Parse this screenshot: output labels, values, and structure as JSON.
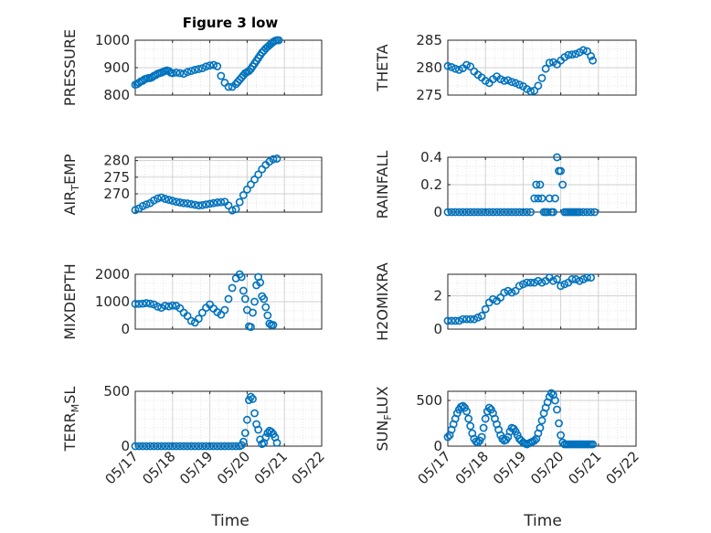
{
  "figure": {
    "title": "Figure 3 low"
  },
  "chart_data": [
    {
      "type": "scatter",
      "ylabel": "PRESSURE",
      "yticks": [
        "800",
        "900",
        "1000"
      ],
      "ylim": [
        800,
        1000
      ],
      "xlim": [
        "05/17",
        "05/22"
      ],
      "x_unit": "days since 05/17 00:00",
      "series": [
        {
          "x": [
            0,
            0.05,
            0.1,
            0.15,
            0.2,
            0.25,
            0.3,
            0.35,
            0.4,
            0.45,
            0.5,
            0.55,
            0.6,
            0.65,
            0.7,
            0.75,
            0.8,
            0.85,
            0.9,
            0.95,
            1.0,
            1.1,
            1.2,
            1.3,
            1.4,
            1.5,
            1.6,
            1.7,
            1.8,
            1.9,
            2.0,
            2.1,
            2.2,
            2.3,
            2.4,
            2.5,
            2.6,
            2.7,
            2.75,
            2.8,
            2.85,
            2.9,
            2.95,
            3.0,
            3.05,
            3.1,
            3.15,
            3.2,
            3.25,
            3.3,
            3.35,
            3.4,
            3.45,
            3.5,
            3.55,
            3.6,
            3.65,
            3.7,
            3.75,
            3.8,
            3.85
          ],
          "y": [
            838,
            840,
            845,
            850,
            852,
            858,
            860,
            862,
            862,
            865,
            870,
            873,
            878,
            880,
            882,
            885,
            888,
            890,
            888,
            882,
            880,
            882,
            880,
            878,
            884,
            888,
            892,
            895,
            898,
            904,
            908,
            910,
            905,
            870,
            845,
            830,
            830,
            840,
            848,
            856,
            864,
            872,
            880,
            884,
            888,
            895,
            905,
            915,
            925,
            935,
            945,
            955,
            962,
            970,
            976,
            982,
            988,
            994,
            998,
            1000,
            1000
          ]
        }
      ]
    },
    {
      "type": "scatter",
      "ylabel": "THETA",
      "yticks": [
        "275",
        "280",
        "285"
      ],
      "ylim": [
        275,
        285
      ],
      "xlim": [
        "05/17",
        "05/22"
      ],
      "x_unit": "days since 05/17 00:00",
      "series": [
        {
          "x": [
            0,
            0.1,
            0.2,
            0.3,
            0.4,
            0.5,
            0.6,
            0.7,
            0.8,
            0.9,
            1.0,
            1.1,
            1.2,
            1.3,
            1.4,
            1.5,
            1.6,
            1.7,
            1.8,
            1.9,
            2.0,
            2.1,
            2.2,
            2.3,
            2.4,
            2.5,
            2.6,
            2.7,
            2.8,
            2.9,
            3.0,
            3.1,
            3.2,
            3.3,
            3.4,
            3.5,
            3.6,
            3.7,
            3.8,
            3.85
          ],
          "y": [
            280.3,
            280.1,
            279.8,
            279.6,
            279.9,
            280.5,
            280.2,
            279.3,
            278.7,
            278.2,
            277.6,
            277.2,
            277.9,
            278.4,
            277.9,
            277.6,
            277.7,
            277.4,
            277.2,
            276.9,
            276.6,
            276.1,
            275.7,
            275.8,
            276.7,
            278.1,
            279.8,
            280.9,
            281.0,
            280.6,
            281.3,
            281.9,
            282.3,
            282.4,
            282.5,
            282.8,
            283.2,
            283.0,
            282.1,
            281.3
          ]
        }
      ]
    },
    {
      "type": "scatter",
      "ylabel": "AIR_TEMP",
      "ylabel_parts": {
        "main": "AIR",
        "sub": "T",
        "rest": "EMP"
      },
      "yticks": [
        "270",
        "275",
        "280"
      ],
      "ylim": [
        264.5,
        281
      ],
      "xlim": [
        "05/17",
        "05/22"
      ],
      "x_unit": "days since 05/17 00:00",
      "series": [
        {
          "x": [
            0,
            0.1,
            0.2,
            0.3,
            0.4,
            0.5,
            0.6,
            0.7,
            0.8,
            0.9,
            1.0,
            1.1,
            1.2,
            1.3,
            1.4,
            1.5,
            1.6,
            1.7,
            1.8,
            1.9,
            2.0,
            2.1,
            2.2,
            2.3,
            2.4,
            2.5,
            2.6,
            2.7,
            2.8,
            2.9,
            3.0,
            3.1,
            3.2,
            3.3,
            3.4,
            3.5,
            3.6,
            3.7,
            3.8
          ],
          "y": [
            265.1,
            265.6,
            266.3,
            266.8,
            267.2,
            268.0,
            268.6,
            268.9,
            268.5,
            268.2,
            267.9,
            267.6,
            267.4,
            267.2,
            267.1,
            266.9,
            266.7,
            266.5,
            266.6,
            266.8,
            267.0,
            267.2,
            267.4,
            267.5,
            267.6,
            266.5,
            265.0,
            265.4,
            267.5,
            269.6,
            271.3,
            272.8,
            274.3,
            275.8,
            277.4,
            278.7,
            279.7,
            280.4,
            280.6
          ]
        }
      ]
    },
    {
      "type": "scatter",
      "ylabel": "RAINFALL",
      "yticks": [
        "0",
        "0.2",
        "0.4"
      ],
      "ylim": [
        0,
        0.4
      ],
      "xlim": [
        "05/17",
        "05/22"
      ],
      "x_unit": "days since 05/17 00:00",
      "series": [
        {
          "x": [
            0,
            0.1,
            0.2,
            0.3,
            0.4,
            0.5,
            0.6,
            0.7,
            0.8,
            0.9,
            1.0,
            1.1,
            1.2,
            1.3,
            1.4,
            1.5,
            1.6,
            1.7,
            1.8,
            1.9,
            2.0,
            2.1,
            2.2,
            2.3,
            2.35,
            2.4,
            2.45,
            2.5,
            2.55,
            2.6,
            2.65,
            2.7,
            2.75,
            2.8,
            2.85,
            2.9,
            2.95,
            3.0,
            3.05,
            3.1,
            3.15,
            3.2,
            3.25,
            3.3,
            3.35,
            3.4,
            3.45,
            3.5,
            3.6,
            3.7,
            3.8,
            3.9
          ],
          "y": [
            0,
            0,
            0,
            0,
            0,
            0,
            0,
            0,
            0,
            0,
            0,
            0,
            0,
            0,
            0,
            0,
            0,
            0,
            0,
            0,
            0,
            0,
            0,
            0.1,
            0.2,
            0.1,
            0.2,
            0.1,
            0,
            0,
            0,
            0.1,
            0,
            0,
            0.1,
            0.4,
            0.3,
            0.3,
            0.2,
            0,
            0,
            0,
            0,
            0,
            0,
            0,
            0,
            0,
            0,
            0,
            0,
            0
          ]
        }
      ]
    },
    {
      "type": "scatter",
      "ylabel": "MIXDEPTH",
      "yticks": [
        "0",
        "1000",
        "2000"
      ],
      "ylim": [
        0,
        2000
      ],
      "xlim": [
        "05/17",
        "05/22"
      ],
      "x_unit": "days since 05/17 00:00",
      "series": [
        {
          "x": [
            0,
            0.1,
            0.2,
            0.3,
            0.4,
            0.5,
            0.6,
            0.7,
            0.8,
            0.9,
            1.0,
            1.1,
            1.2,
            1.3,
            1.4,
            1.5,
            1.6,
            1.7,
            1.8,
            1.9,
            2.0,
            2.1,
            2.2,
            2.3,
            2.4,
            2.5,
            2.6,
            2.7,
            2.8,
            2.85,
            2.9,
            2.95,
            3.0,
            3.05,
            3.1,
            3.15,
            3.2,
            3.25,
            3.3,
            3.35,
            3.4,
            3.45,
            3.5,
            3.55,
            3.6,
            3.65,
            3.7
          ],
          "y": [
            920,
            920,
            930,
            950,
            930,
            900,
            820,
            780,
            850,
            830,
            860,
            850,
            760,
            600,
            480,
            300,
            240,
            380,
            600,
            780,
            900,
            750,
            620,
            530,
            700,
            1100,
            1500,
            1850,
            2000,
            1900,
            1400,
            1100,
            700,
            100,
            80,
            600,
            1000,
            1600,
            1900,
            1700,
            1200,
            1100,
            800,
            500,
            200,
            150,
            150
          ]
        }
      ]
    },
    {
      "type": "scatter",
      "ylabel": "H2OMIXRA",
      "yticks": [
        "0",
        "2"
      ],
      "ylim": [
        0,
        3.3
      ],
      "xlim": [
        "05/17",
        "05/22"
      ],
      "x_unit": "days since 05/17 00:00",
      "series": [
        {
          "x": [
            0,
            0.1,
            0.2,
            0.3,
            0.4,
            0.5,
            0.6,
            0.7,
            0.8,
            0.9,
            1.0,
            1.1,
            1.2,
            1.3,
            1.4,
            1.5,
            1.6,
            1.7,
            1.8,
            1.9,
            2.0,
            2.1,
            2.2,
            2.3,
            2.4,
            2.5,
            2.6,
            2.7,
            2.8,
            2.9,
            3.0,
            3.1,
            3.2,
            3.3,
            3.4,
            3.5,
            3.6,
            3.7,
            3.8
          ],
          "y": [
            0.5,
            0.5,
            0.5,
            0.5,
            0.6,
            0.6,
            0.6,
            0.6,
            0.7,
            0.8,
            1.2,
            1.6,
            1.8,
            1.7,
            1.9,
            2.2,
            2.3,
            2.2,
            2.3,
            2.6,
            2.7,
            2.8,
            2.8,
            2.8,
            2.9,
            2.8,
            2.9,
            3.1,
            2.9,
            3.0,
            2.6,
            2.7,
            2.8,
            3.0,
            3.0,
            2.9,
            3.0,
            3.1,
            3.1
          ]
        }
      ]
    },
    {
      "type": "scatter",
      "ylabel": "TERR_MSL",
      "ylabel_parts": {
        "main": "TERR",
        "sub": "M",
        "rest": "SL"
      },
      "yticks": [
        "0",
        "500"
      ],
      "ylim": [
        0,
        500
      ],
      "xlim": [
        "05/17",
        "05/22"
      ],
      "x_unit": "days since 05/17 00:00",
      "series": [
        {
          "x": [
            0,
            0.1,
            0.2,
            0.3,
            0.4,
            0.5,
            0.6,
            0.7,
            0.8,
            0.9,
            1.0,
            1.1,
            1.2,
            1.3,
            1.4,
            1.5,
            1.6,
            1.7,
            1.8,
            1.9,
            2.0,
            2.1,
            2.2,
            2.3,
            2.4,
            2.5,
            2.6,
            2.7,
            2.8,
            2.85,
            2.9,
            2.95,
            3.0,
            3.05,
            3.1,
            3.15,
            3.2,
            3.25,
            3.3,
            3.35,
            3.4,
            3.45,
            3.5,
            3.55,
            3.6,
            3.65,
            3.7,
            3.75,
            3.8
          ],
          "y": [
            0,
            0,
            0,
            0,
            0,
            0,
            0,
            0,
            0,
            0,
            0,
            0,
            0,
            0,
            0,
            0,
            0,
            0,
            0,
            0,
            0,
            0,
            0,
            0,
            0,
            0,
            0,
            0,
            0,
            10,
            40,
            120,
            240,
            420,
            450,
            430,
            300,
            200,
            150,
            60,
            20,
            30,
            80,
            120,
            140,
            130,
            110,
            80,
            30
          ]
        }
      ]
    },
    {
      "type": "scatter",
      "ylabel": "SUN_FLUX",
      "ylabel_parts": {
        "main": "SUN",
        "sub": "F",
        "rest": "LUX"
      },
      "yticks": [
        "0",
        "500"
      ],
      "ylim": [
        0,
        600
      ],
      "xlim": [
        "05/17",
        "05/22"
      ],
      "x_unit": "days since 05/17 00:00",
      "series": [
        {
          "x": [
            0,
            0.05,
            0.1,
            0.15,
            0.2,
            0.25,
            0.3,
            0.35,
            0.4,
            0.45,
            0.5,
            0.55,
            0.6,
            0.65,
            0.7,
            0.75,
            0.8,
            0.85,
            0.9,
            0.95,
            1.0,
            1.05,
            1.1,
            1.15,
            1.2,
            1.25,
            1.3,
            1.35,
            1.4,
            1.45,
            1.5,
            1.55,
            1.6,
            1.65,
            1.7,
            1.75,
            1.8,
            1.85,
            1.9,
            1.95,
            2.0,
            2.05,
            2.1,
            2.15,
            2.2,
            2.25,
            2.3,
            2.35,
            2.4,
            2.45,
            2.5,
            2.55,
            2.6,
            2.65,
            2.7,
            2.75,
            2.8,
            2.85,
            2.9,
            2.95,
            3.0,
            3.05,
            3.1,
            3.15,
            3.2,
            3.25,
            3.3,
            3.35,
            3.4,
            3.45,
            3.5,
            3.55,
            3.6,
            3.65,
            3.7,
            3.75,
            3.8,
            3.85
          ],
          "y": [
            100,
            120,
            180,
            240,
            300,
            360,
            400,
            430,
            440,
            420,
            380,
            300,
            220,
            140,
            80,
            50,
            40,
            60,
            100,
            200,
            300,
            380,
            420,
            400,
            360,
            300,
            240,
            180,
            120,
            80,
            60,
            70,
            100,
            160,
            200,
            190,
            160,
            120,
            80,
            60,
            40,
            30,
            20,
            30,
            40,
            50,
            60,
            80,
            140,
            200,
            280,
            360,
            420,
            480,
            540,
            580,
            560,
            500,
            400,
            250,
            120,
            40,
            20,
            20,
            20,
            20,
            20,
            20,
            20,
            20,
            20,
            20,
            20,
            20,
            20,
            20,
            20,
            20
          ]
        }
      ]
    }
  ],
  "x_axis": {
    "label": "Time",
    "ticks": [
      "05/17",
      "05/18",
      "05/19",
      "05/20",
      "05/21",
      "05/22"
    ]
  },
  "colors": {
    "marker": "#0072bd",
    "grid": "#dcdcdc",
    "axis": "#262626"
  }
}
